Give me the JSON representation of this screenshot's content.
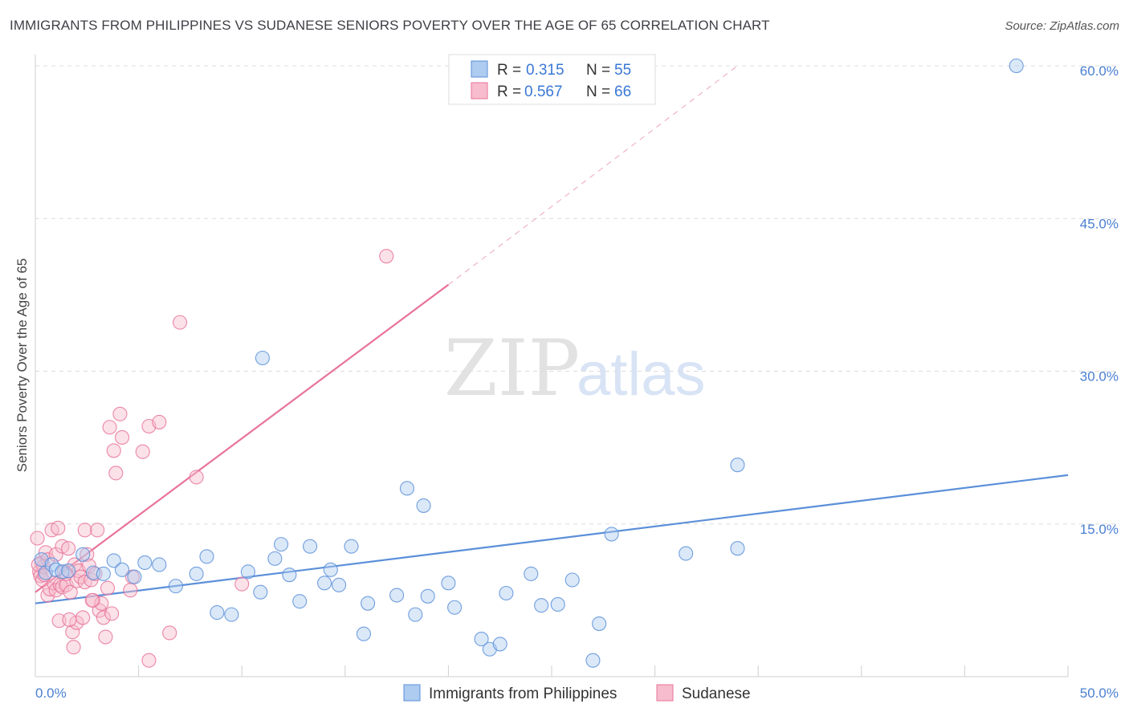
{
  "title": "IMMIGRANTS FROM PHILIPPINES VS SUDANESE SENIORS POVERTY OVER THE AGE OF 65 CORRELATION CHART",
  "source": "Source: ZipAtlas.com",
  "watermark": {
    "zip": "ZIP",
    "atlas": "atlas"
  },
  "colors": {
    "blue": "#5b8fd9",
    "blue_fill": "#aecbf0",
    "pink": "#e8739a",
    "pink_fill": "#f7bccd"
  },
  "chart_data": {
    "type": "scatter",
    "xlabel": "",
    "ylabel": "Seniors Poverty Over the Age of 65",
    "xlim": [
      0,
      50
    ],
    "ylim": [
      0,
      60
    ],
    "x_tick_labels": [
      "0.0%",
      "50.0%"
    ],
    "y_ticks": [
      15,
      30,
      45,
      60
    ],
    "y_tick_labels": [
      "15.0%",
      "30.0%",
      "45.0%",
      "60.0%"
    ],
    "grid": true,
    "legend": [
      {
        "r_label": "R =",
        "r_value": "0.315",
        "n_label": "N =",
        "n_value": "55"
      },
      {
        "r_label": "R =",
        "r_value": "0.567",
        "n_label": "N =",
        "n_value": "66"
      }
    ],
    "series": [
      {
        "name": "Immigrants from Philippines",
        "color": "#5b8fd9",
        "trend": {
          "x": [
            0,
            50
          ],
          "y": [
            7.2,
            19.8
          ],
          "dashed_to": null
        },
        "points": [
          [
            0.3,
            11.5
          ],
          [
            0.5,
            10.2
          ],
          [
            0.8,
            11
          ],
          [
            1.0,
            10.5
          ],
          [
            1.3,
            10.3
          ],
          [
            1.6,
            10.4
          ],
          [
            2.3,
            12
          ],
          [
            2.8,
            10.2
          ],
          [
            3.3,
            10.1
          ],
          [
            3.8,
            11.4
          ],
          [
            4.2,
            10.5
          ],
          [
            4.8,
            9.8
          ],
          [
            5.3,
            11.2
          ],
          [
            6.0,
            11.0
          ],
          [
            6.8,
            8.9
          ],
          [
            7.8,
            10.1
          ],
          [
            8.3,
            11.8
          ],
          [
            8.8,
            6.3
          ],
          [
            9.5,
            6.1
          ],
          [
            10.3,
            10.3
          ],
          [
            10.9,
            8.3
          ],
          [
            11.0,
            31.3
          ],
          [
            11.6,
            11.6
          ],
          [
            11.9,
            13.0
          ],
          [
            12.3,
            10.0
          ],
          [
            12.8,
            7.4
          ],
          [
            13.3,
            12.8
          ],
          [
            14.0,
            9.2
          ],
          [
            14.3,
            10.5
          ],
          [
            14.7,
            9.0
          ],
          [
            15.3,
            12.8
          ],
          [
            15.9,
            4.2
          ],
          [
            16.1,
            7.2
          ],
          [
            17.5,
            8.0
          ],
          [
            18.0,
            18.5
          ],
          [
            18.4,
            6.1
          ],
          [
            18.8,
            16.8
          ],
          [
            19.0,
            7.9
          ],
          [
            20.0,
            9.2
          ],
          [
            20.3,
            6.8
          ],
          [
            21.6,
            3.7
          ],
          [
            22.0,
            2.7
          ],
          [
            22.5,
            3.2
          ],
          [
            22.8,
            8.2
          ],
          [
            24.0,
            10.1
          ],
          [
            24.5,
            7.0
          ],
          [
            25.3,
            7.1
          ],
          [
            26.0,
            9.5
          ],
          [
            27.0,
            1.6
          ],
          [
            27.3,
            5.2
          ],
          [
            27.9,
            14.0
          ],
          [
            31.5,
            12.1
          ],
          [
            34.0,
            20.8
          ],
          [
            34.0,
            12.6
          ],
          [
            47.5,
            60.0
          ]
        ]
      },
      {
        "name": "Sudanese",
        "color": "#e8739a",
        "trend": {
          "x": [
            0,
            20
          ],
          "y": [
            8.3,
            38.5
          ],
          "dashed_to": [
            34,
            60
          ]
        },
        "points": [
          [
            0.1,
            13.6
          ],
          [
            0.2,
            10.3
          ],
          [
            0.25,
            9.9
          ],
          [
            0.3,
            11.2
          ],
          [
            0.35,
            9.5
          ],
          [
            0.4,
            10.8
          ],
          [
            0.5,
            12.2
          ],
          [
            0.6,
            8.0
          ],
          [
            0.6,
            11.5
          ],
          [
            0.7,
            8.6
          ],
          [
            0.8,
            14.4
          ],
          [
            0.9,
            9.2
          ],
          [
            1.0,
            12.0
          ],
          [
            1.0,
            8.5
          ],
          [
            1.1,
            14.6
          ],
          [
            1.2,
            9.0
          ],
          [
            1.3,
            12.8
          ],
          [
            1.3,
            8.8
          ],
          [
            1.4,
            10.3
          ],
          [
            1.5,
            9.0
          ],
          [
            1.5,
            10.1
          ],
          [
            1.6,
            12.6
          ],
          [
            1.7,
            8.3
          ],
          [
            1.8,
            4.4
          ],
          [
            1.9,
            11.0
          ],
          [
            2.0,
            5.3
          ],
          [
            2.0,
            9.4
          ],
          [
            2.1,
            10.4
          ],
          [
            2.2,
            9.8
          ],
          [
            2.3,
            5.8
          ],
          [
            2.4,
            14.4
          ],
          [
            2.4,
            9.3
          ],
          [
            2.5,
            12.0
          ],
          [
            2.6,
            10.9
          ],
          [
            2.7,
            9.5
          ],
          [
            2.8,
            7.5
          ],
          [
            2.9,
            10.1
          ],
          [
            3.0,
            14.4
          ],
          [
            3.1,
            6.5
          ],
          [
            3.2,
            7.2
          ],
          [
            3.3,
            5.8
          ],
          [
            3.4,
            3.9
          ],
          [
            3.5,
            8.7
          ],
          [
            3.6,
            24.5
          ],
          [
            3.7,
            6.2
          ],
          [
            3.8,
            22.2
          ],
          [
            3.9,
            20.0
          ],
          [
            4.1,
            25.8
          ],
          [
            4.2,
            23.5
          ],
          [
            4.6,
            8.5
          ],
          [
            4.7,
            9.8
          ],
          [
            5.2,
            22.1
          ],
          [
            5.5,
            24.6
          ],
          [
            5.5,
            1.6
          ],
          [
            6.0,
            25.0
          ],
          [
            6.5,
            4.3
          ],
          [
            7.0,
            34.8
          ],
          [
            7.8,
            19.6
          ],
          [
            10.0,
            9.1
          ],
          [
            17.0,
            41.3
          ],
          [
            0.15,
            11.0
          ],
          [
            0.45,
            10.0
          ],
          [
            1.15,
            5.5
          ],
          [
            1.65,
            5.6
          ],
          [
            2.75,
            7.5
          ],
          [
            1.85,
            2.9
          ]
        ]
      }
    ]
  }
}
